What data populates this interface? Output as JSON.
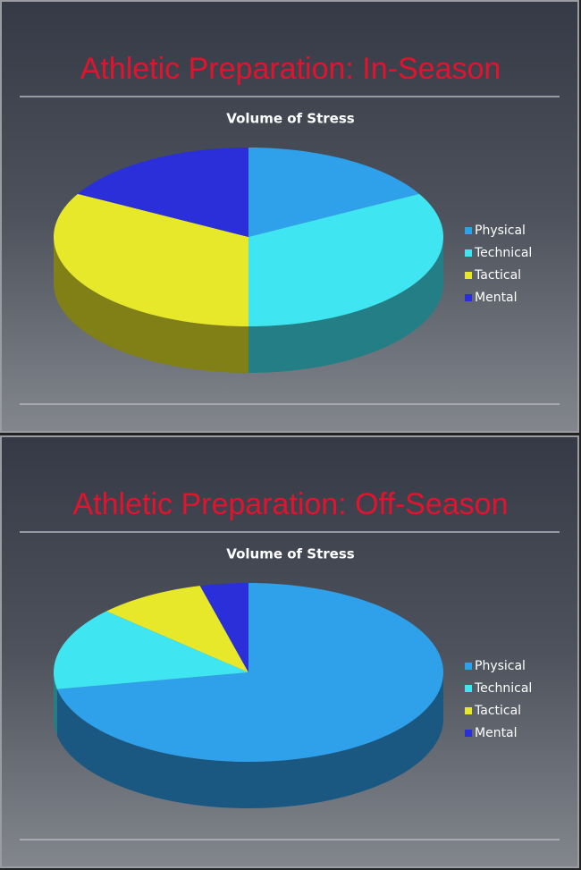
{
  "chart_data": [
    {
      "type": "pie",
      "heading": "Athletic Preparation: In-Season",
      "title": "Volume of Stress",
      "categories": [
        "Physical",
        "Technical",
        "Tactical",
        "Mental"
      ],
      "values": [
        17,
        33,
        33,
        17
      ],
      "colors": [
        "#2fa0ea",
        "#3fe6f2",
        "#e8e82a",
        "#2b2fd9"
      ],
      "legend": "right"
    },
    {
      "type": "pie",
      "heading": "Athletic Preparation: Off-Season",
      "title": "Volume of Stress",
      "categories": [
        "Physical",
        "Technical",
        "Tactical",
        "Mental"
      ],
      "values": [
        72,
        15,
        9,
        4
      ],
      "colors": [
        "#2fa0ea",
        "#3fe6f2",
        "#e8e82a",
        "#2b2fd9"
      ],
      "legend": "right"
    }
  ]
}
